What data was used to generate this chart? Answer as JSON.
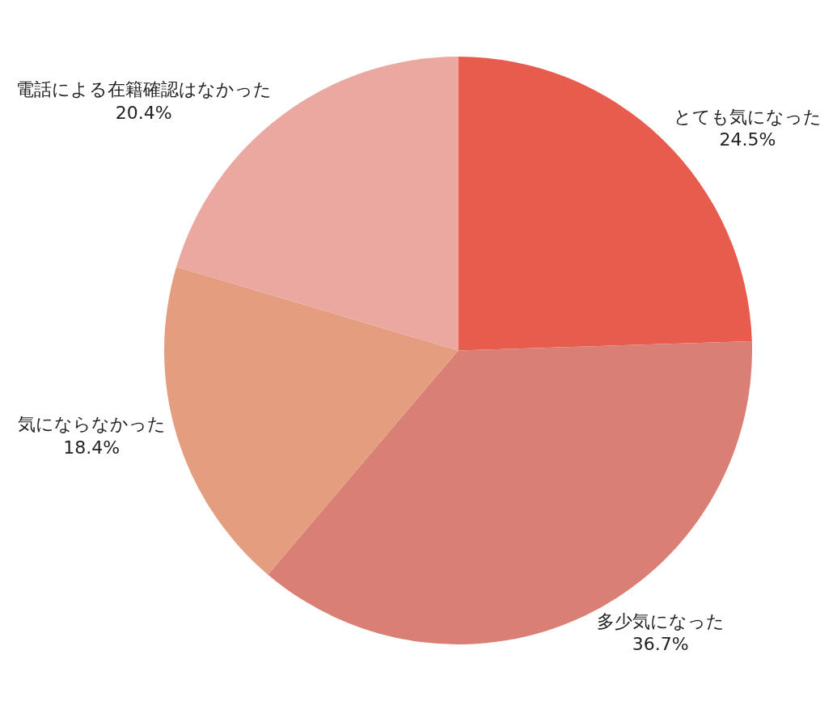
{
  "chart_data": {
    "type": "pie",
    "categories": [
      "とても気になった",
      "多少気になった",
      "気にならなかった",
      "電話による在籍確認はなかった"
    ],
    "values": [
      24.5,
      36.7,
      18.4,
      20.4
    ],
    "value_labels": [
      "24.5%",
      "36.7%",
      "18.4%",
      "20.4%"
    ],
    "colors": [
      "#e85c4e",
      "#d97f75",
      "#e49e7f",
      "#eaa8a1"
    ],
    "legend": false
  }
}
